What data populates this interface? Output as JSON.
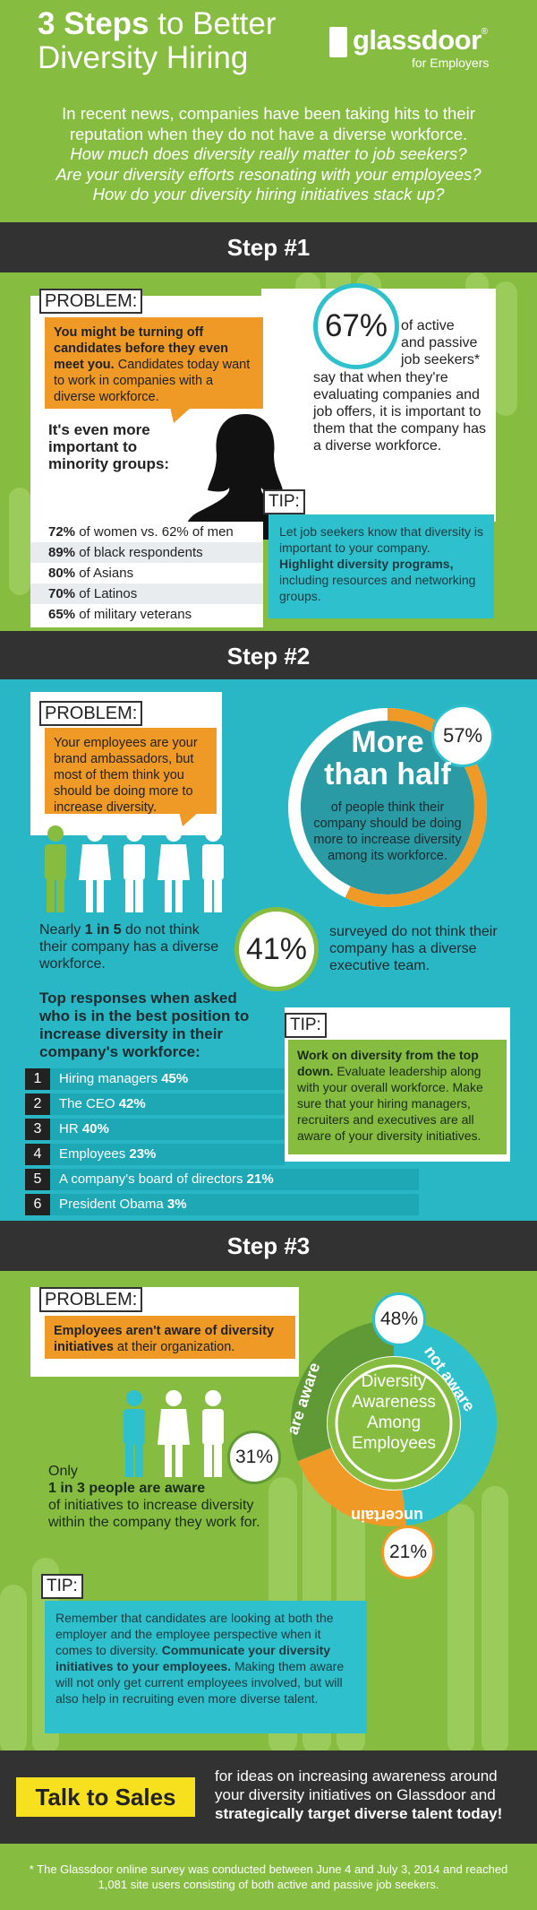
{
  "header": {
    "title_bold": "3 Steps",
    "title_rest": " to Better",
    "title_line2": "Diversity Hiring",
    "logo_name": "glassdoor",
    "logo_reg": "®",
    "logo_sub": "for Employers",
    "intro_line1": "In recent news, companies have been taking hits to their",
    "intro_line2": "reputation when they do not have a diverse workforce.",
    "intro_line3": "How much does diversity really matter to job seekers?",
    "intro_line4": "Are your diversity efforts resonating with your employees?",
    "intro_line5": "How do your diversity hiring initiatives stack up?"
  },
  "step1": {
    "heading": "Step #1",
    "problem_label": "PROBLEM:",
    "problem_bold": "You might be turning off candidates before they even meet you.",
    "problem_rest": " Candidates today want to work in companies with a diverse workforce.",
    "stat_percent": "67%",
    "stat_text_line1": "of active",
    "stat_text_line2": "and passive",
    "stat_text_line3": "job seekers*",
    "stat_text_rest": "say that when they're evaluating companies and job offers, it is important to them that the company has a diverse workforce.",
    "minority_heading": "It's even more important to minority groups:",
    "rows": [
      {
        "pct": "72%",
        "text": " of women vs. 62% of men"
      },
      {
        "pct": "89%",
        "text": " of black respondents"
      },
      {
        "pct": "80%",
        "text": " of Asians"
      },
      {
        "pct": "70%",
        "text": " of Latinos"
      },
      {
        "pct": "65%",
        "text": " of military veterans"
      }
    ],
    "tip_label": "TIP:",
    "tip_text_a": "Let job seekers know that diversity is important to your company. ",
    "tip_bold": "Highlight diversity programs,",
    "tip_text_b": " including resources and networking groups."
  },
  "step2": {
    "heading": "Step #2",
    "problem_label": "PROBLEM:",
    "problem_text": "Your employees are your brand ambassadors, but most of them think you should be doing more to increase diversity.",
    "pct_57": "57%",
    "more_line1": "More",
    "more_line2": "than half",
    "more_text": "of people think their company should be doing more to increase diversity among its workforce.",
    "nearly_a": "Nearly ",
    "nearly_bold": "1 in 5",
    "nearly_b": " do not think their company has a diverse workforce.",
    "pct_41": "41%",
    "exec_text": "surveyed do not think their company has a diverse executive team.",
    "responses_heading": "Top responses when asked who is in the best position to increase diversity in their company's workforce:",
    "ranks": [
      {
        "n": "1",
        "label": "Hiring managers ",
        "pct": "45%"
      },
      {
        "n": "2",
        "label": "The CEO ",
        "pct": "42%"
      },
      {
        "n": "3",
        "label": "HR ",
        "pct": "40%"
      },
      {
        "n": "4",
        "label": "Employees ",
        "pct": "23%"
      },
      {
        "n": "5",
        "label": "A company's board of directors ",
        "pct": "21%"
      },
      {
        "n": "6",
        "label": "President Obama ",
        "pct": "3%"
      }
    ],
    "tip_label": "TIP:",
    "tip_bold": "Work on diversity from the top down.",
    "tip_rest": " Evaluate leadership along with your overall workforce. Make sure that your hiring managers, recruiters and executives are all aware of your diversity initiatives."
  },
  "step3": {
    "heading": "Step #3",
    "problem_label": "PROBLEM:",
    "problem_bold": "Employees aren't aware of diversity initiatives",
    "problem_rest": " at their organization.",
    "donut_title_l1": "Diversity",
    "donut_title_l2": "Awareness",
    "donut_title_l3": "Among",
    "donut_title_l4": "Employees",
    "seg_not_aware": "not aware",
    "seg_are_aware": "are aware",
    "seg_uncertain": "uncertain",
    "pct_48": "48%",
    "pct_31": "31%",
    "pct_21": "21%",
    "only_a": "Only",
    "only_bold": "1 in 3 people are aware",
    "only_b": "of initiatives to increase diversity within the company they work for.",
    "tip_label": "TIP:",
    "tip_a": "Remember that candidates are looking at both the employer and the employee perspective when it comes to diversity. ",
    "tip_bold": "Communicate your diversity initiatives to your employees.",
    "tip_b": " Making them aware will not only get current employees involved, but will also help in recruiting even more diverse talent."
  },
  "cta": {
    "button": "Talk to Sales",
    "text_a": "for ideas on increasing awareness around your diversity initiatives on Glassdoor and ",
    "text_bold": "strategically target diverse talent today!"
  },
  "footnote": "* The Glassdoor online survey was conducted between June 4 and July 3, 2014 and reached 1,081 site users consisting of both active and passive job seekers.",
  "colors": {
    "green": "#86bd40",
    "teal": "#29b7c6",
    "orange": "#ef9a26",
    "dark": "#323232",
    "yellow": "#f7e11f"
  }
}
